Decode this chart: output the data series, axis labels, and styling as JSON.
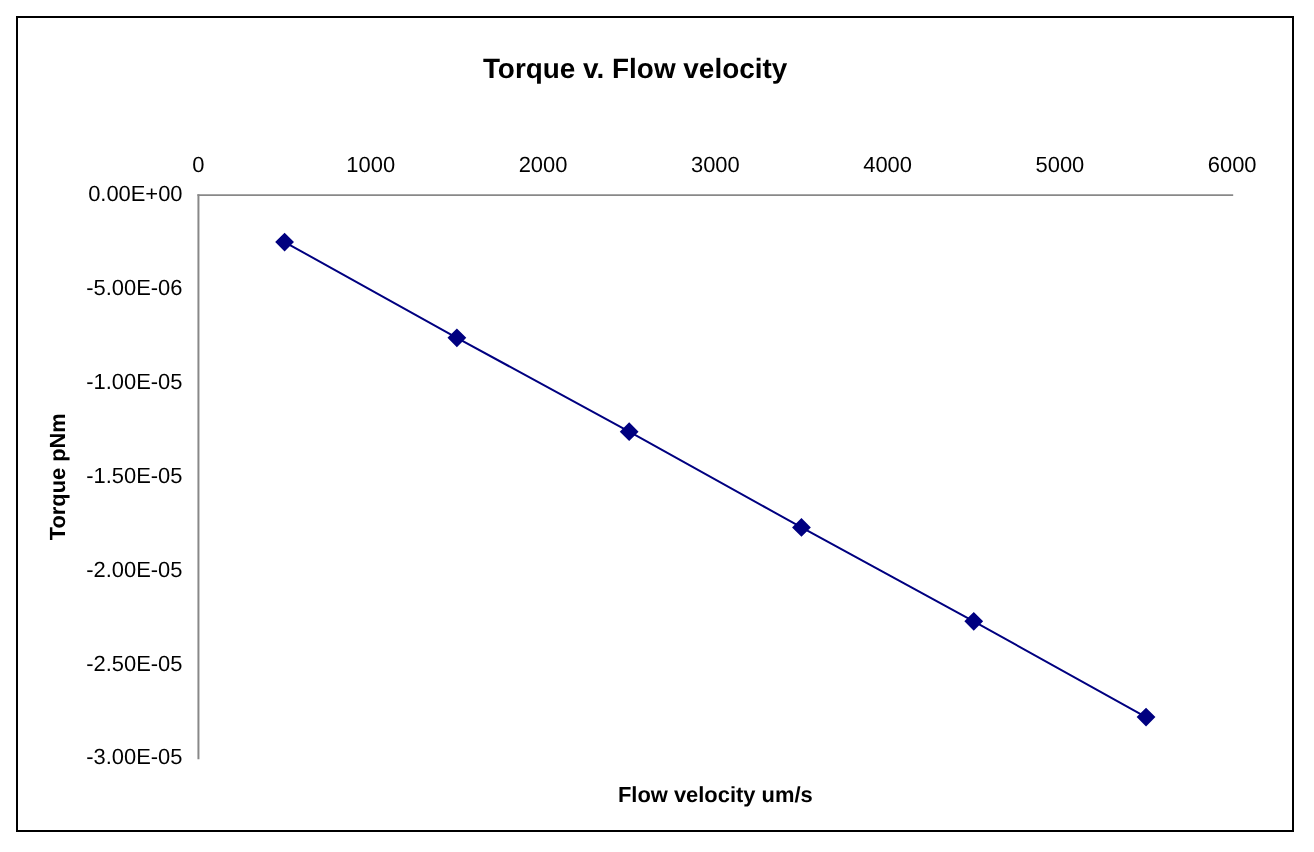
{
  "chart_data": {
    "type": "line",
    "title": "Torque v. Flow velocity",
    "xlabel": "Flow velocity um/s",
    "ylabel": "Torque pNm",
    "x": [
      500,
      1500,
      2500,
      3500,
      4500,
      5500
    ],
    "series": [
      {
        "color": "#000080",
        "values": [
          -2.5e-06,
          -7.6e-06,
          -1.26e-05,
          -1.77e-05,
          -2.27e-05,
          -2.78e-05
        ]
      }
    ],
    "xlim": [
      0,
      6000
    ],
    "xticks": [
      0,
      1000,
      2000,
      3000,
      4000,
      5000,
      6000
    ],
    "ylim": [
      -3e-05,
      0
    ],
    "yticks": [
      {
        "value": 0,
        "label": "0.00E+00"
      },
      {
        "value": -5e-06,
        "label": "-5.00E-06"
      },
      {
        "value": -1e-05,
        "label": "-1.00E-05"
      },
      {
        "value": -1.5e-05,
        "label": "-1.50E-05"
      },
      {
        "value": -2e-05,
        "label": "-2.00E-05"
      },
      {
        "value": -2.5e-05,
        "label": "-2.50E-05"
      },
      {
        "value": -3e-05,
        "label": "-3.00E-05"
      }
    ],
    "grid": false,
    "legend": false,
    "marker": "diamond",
    "line_style": "solid"
  }
}
